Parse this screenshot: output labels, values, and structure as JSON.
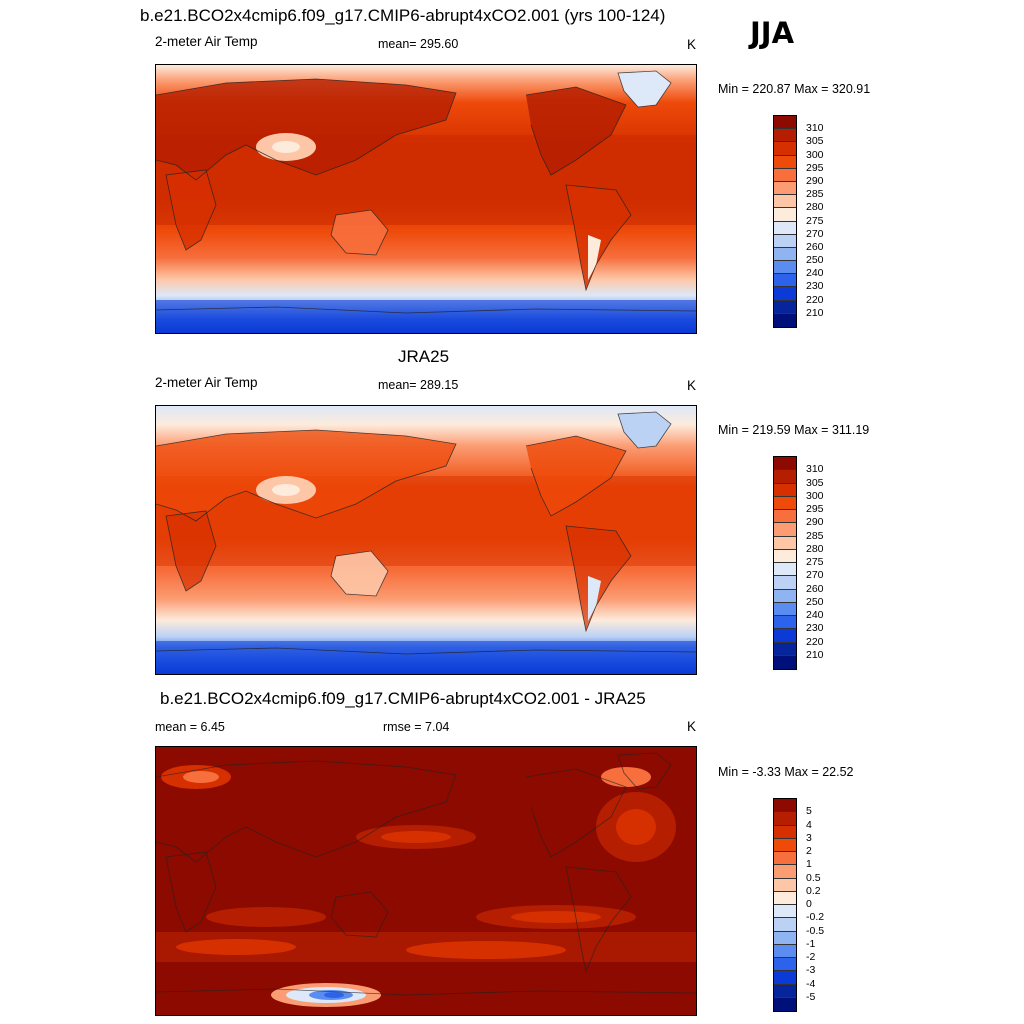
{
  "season": "JJA",
  "panels": [
    {
      "title": "b.e21.BCO2x4cmip6.f09_g17.CMIP6-abrupt4xCO2.001 (yrs 100-124)",
      "left_label": "2-meter Air Temp",
      "center_label": "mean= 295.60",
      "right_label": "K",
      "minmax": "Min = 220.87 Max = 320.91",
      "colorbar": {
        "levels": [
          "310",
          "305",
          "300",
          "295",
          "290",
          "285",
          "280",
          "275",
          "270",
          "260",
          "250",
          "240",
          "230",
          "220",
          "210"
        ],
        "colors": [
          "#8c0a00",
          "#b51e00",
          "#d73000",
          "#ee4a0a",
          "#f76f3d",
          "#fb9c72",
          "#fdc7a7",
          "#fdebdc",
          "#dde8f8",
          "#bcd2f5",
          "#90b3f2",
          "#5b8df0",
          "#2d63ea",
          "#0b3ad6",
          "#06259c",
          "#00107a"
        ]
      }
    },
    {
      "title": "JRA25",
      "left_label": "2-meter Air Temp",
      "center_label": "mean= 289.15",
      "right_label": "K",
      "minmax": "Min = 219.59 Max = 311.19",
      "colorbar": {
        "levels": [
          "310",
          "305",
          "300",
          "295",
          "290",
          "285",
          "280",
          "275",
          "270",
          "260",
          "250",
          "240",
          "230",
          "220",
          "210"
        ],
        "colors": [
          "#8c0a00",
          "#b51e00",
          "#d73000",
          "#ee4a0a",
          "#f76f3d",
          "#fb9c72",
          "#fdc7a7",
          "#fdebdc",
          "#dde8f8",
          "#bcd2f5",
          "#90b3f2",
          "#5b8df0",
          "#2d63ea",
          "#0b3ad6",
          "#06259c",
          "#00107a"
        ]
      }
    },
    {
      "title": "b.e21.BCO2x4cmip6.f09_g17.CMIP6-abrupt4xCO2.001 - JRA25",
      "left_label": "mean =   6.45",
      "center_label": "rmse =   7.04",
      "right_label": "K",
      "minmax": "Min =  -3.33 Max =  22.52",
      "colorbar": {
        "levels": [
          "5",
          "4",
          "3",
          "2",
          "1",
          "0.5",
          "0.2",
          "0",
          "-0.2",
          "-0.5",
          "-1",
          "-2",
          "-3",
          "-4",
          "-5"
        ],
        "colors": [
          "#8c0a00",
          "#b51e00",
          "#d73000",
          "#ee4a0a",
          "#f76f3d",
          "#fb9c72",
          "#fdc7a7",
          "#fdebdc",
          "#dde8f8",
          "#bcd2f5",
          "#90b3f2",
          "#5b8df0",
          "#2d63ea",
          "#0b3ad6",
          "#06259c",
          "#00107a"
        ]
      }
    }
  ]
}
